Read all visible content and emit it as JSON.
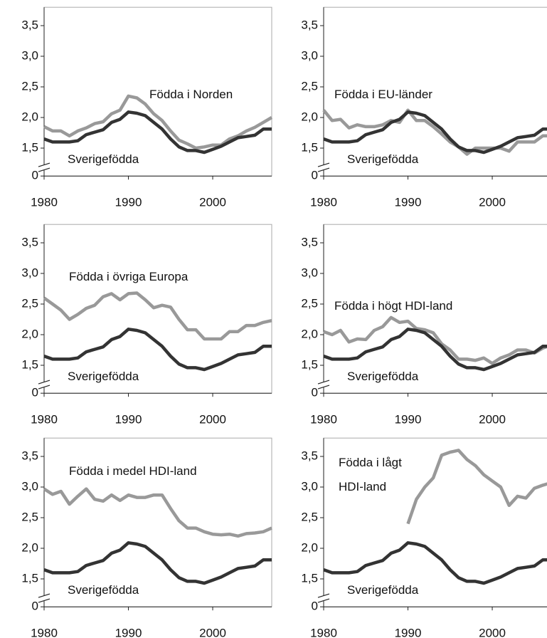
{
  "chart_data": [
    {
      "type": "line",
      "xlim": [
        1980,
        2007
      ],
      "xticks": [
        1980,
        1990,
        2000
      ],
      "ylim": [
        0,
        3.8
      ],
      "axis_break": 1.3,
      "yticks": [
        0,
        {
          "value": 1.5,
          "label": "1,5"
        },
        {
          "value": 2.0,
          "label": "2,0"
        },
        {
          "value": 2.5,
          "label": "2,5"
        },
        {
          "value": 3.0,
          "label": "3,0"
        },
        {
          "value": 3.5,
          "label": "3,5"
        }
      ],
      "x": [
        1980,
        1981,
        1982,
        1983,
        1984,
        1985,
        1986,
        1987,
        1988,
        1989,
        1990,
        1991,
        1992,
        1993,
        1994,
        1995,
        1996,
        1997,
        1998,
        1999,
        2000,
        2001,
        2002,
        2003,
        2004,
        2005,
        2006,
        2007
      ],
      "series": [
        {
          "name": "Födda i Norden",
          "color": "#999999",
          "values": [
            1.85,
            1.78,
            1.78,
            1.7,
            1.78,
            1.83,
            1.9,
            1.93,
            2.06,
            2.12,
            2.35,
            2.32,
            2.22,
            2.06,
            1.95,
            1.78,
            1.63,
            1.57,
            1.5,
            1.52,
            1.55,
            1.55,
            1.65,
            1.7,
            1.78,
            1.84,
            1.92,
            2.0
          ]
        },
        {
          "name": "Sverigefödda",
          "color": "#333333",
          "values": [
            1.65,
            1.6,
            1.6,
            1.6,
            1.62,
            1.72,
            1.76,
            1.8,
            1.92,
            1.97,
            2.09,
            2.07,
            2.03,
            1.92,
            1.81,
            1.65,
            1.52,
            1.46,
            1.46,
            1.43,
            1.48,
            1.53,
            1.6,
            1.67,
            1.69,
            1.71,
            1.81,
            1.81
          ]
        }
      ]
    },
    {
      "type": "line",
      "xlim": [
        1980,
        2007
      ],
      "xticks": [
        1980,
        1990,
        2000
      ],
      "ylim": [
        0,
        3.8
      ],
      "axis_break": 1.3,
      "yticks": [
        0,
        {
          "value": 1.5,
          "label": "1,5"
        },
        {
          "value": 2.0,
          "label": "2,0"
        },
        {
          "value": 2.5,
          "label": "2,5"
        },
        {
          "value": 3.0,
          "label": "3,0"
        },
        {
          "value": 3.5,
          "label": "3,5"
        }
      ],
      "x": [
        1980,
        1981,
        1982,
        1983,
        1984,
        1985,
        1986,
        1987,
        1988,
        1989,
        1990,
        1991,
        1992,
        1993,
        1994,
        1995,
        1996,
        1997,
        1998,
        1999,
        2000,
        2001,
        2002,
        2003,
        2004,
        2005,
        2006,
        2007
      ],
      "series": [
        {
          "name": "Födda i EU-länder",
          "color": "#999999",
          "values": [
            2.12,
            1.95,
            1.97,
            1.83,
            1.88,
            1.85,
            1.85,
            1.88,
            1.95,
            1.92,
            2.12,
            1.95,
            1.95,
            1.85,
            1.73,
            1.6,
            1.52,
            1.4,
            1.5,
            1.5,
            1.5,
            1.5,
            1.45,
            1.6,
            1.6,
            1.6,
            1.7,
            1.7
          ]
        },
        {
          "name": "Sverigefödda",
          "color": "#333333",
          "values": [
            1.65,
            1.6,
            1.6,
            1.6,
            1.62,
            1.72,
            1.76,
            1.8,
            1.92,
            1.97,
            2.09,
            2.07,
            2.03,
            1.92,
            1.81,
            1.65,
            1.52,
            1.46,
            1.46,
            1.43,
            1.48,
            1.53,
            1.6,
            1.67,
            1.69,
            1.71,
            1.81,
            1.81
          ]
        }
      ]
    },
    {
      "type": "line",
      "xlim": [
        1980,
        2007
      ],
      "xticks": [
        1980,
        1990,
        2000
      ],
      "ylim": [
        0,
        3.8
      ],
      "axis_break": 1.3,
      "yticks": [
        0,
        {
          "value": 1.5,
          "label": "1,5"
        },
        {
          "value": 2.0,
          "label": "2,0"
        },
        {
          "value": 2.5,
          "label": "2,5"
        },
        {
          "value": 3.0,
          "label": "3,0"
        },
        {
          "value": 3.5,
          "label": "3,5"
        }
      ],
      "x": [
        1980,
        1981,
        1982,
        1983,
        1984,
        1985,
        1986,
        1987,
        1988,
        1989,
        1990,
        1991,
        1992,
        1993,
        1994,
        1995,
        1996,
        1997,
        1998,
        1999,
        2000,
        2001,
        2002,
        2003,
        2004,
        2005,
        2006,
        2007
      ],
      "series": [
        {
          "name": "Födda i övriga Europa",
          "color": "#999999",
          "values": [
            2.6,
            2.5,
            2.4,
            2.25,
            2.33,
            2.43,
            2.48,
            2.62,
            2.67,
            2.57,
            2.67,
            2.68,
            2.57,
            2.44,
            2.48,
            2.45,
            2.25,
            2.08,
            2.08,
            1.93,
            1.93,
            1.93,
            2.05,
            2.05,
            2.15,
            2.15,
            2.2,
            2.23
          ]
        },
        {
          "name": "Sverigefödda",
          "color": "#333333",
          "values": [
            1.65,
            1.6,
            1.6,
            1.6,
            1.62,
            1.72,
            1.76,
            1.8,
            1.92,
            1.97,
            2.09,
            2.07,
            2.03,
            1.92,
            1.81,
            1.65,
            1.52,
            1.46,
            1.46,
            1.43,
            1.48,
            1.53,
            1.6,
            1.67,
            1.69,
            1.71,
            1.81,
            1.81
          ]
        }
      ]
    },
    {
      "type": "line",
      "xlim": [
        1980,
        2007
      ],
      "xticks": [
        1980,
        1990,
        2000
      ],
      "ylim": [
        0,
        3.8
      ],
      "axis_break": 1.3,
      "yticks": [
        0,
        {
          "value": 1.5,
          "label": "1,5"
        },
        {
          "value": 2.0,
          "label": "2,0"
        },
        {
          "value": 2.5,
          "label": "2,5"
        },
        {
          "value": 3.0,
          "label": "3,0"
        },
        {
          "value": 3.5,
          "label": "3,5"
        }
      ],
      "x": [
        1980,
        1981,
        1982,
        1983,
        1984,
        1985,
        1986,
        1987,
        1988,
        1989,
        1990,
        1991,
        1992,
        1993,
        1994,
        1995,
        1996,
        1997,
        1998,
        1999,
        2000,
        2001,
        2002,
        2003,
        2004,
        2005,
        2006,
        2007
      ],
      "series": [
        {
          "name": "Födda i högt HDI-land",
          "color": "#999999",
          "values": [
            2.05,
            2.0,
            2.07,
            1.88,
            1.93,
            1.92,
            2.07,
            2.13,
            2.28,
            2.2,
            2.22,
            2.1,
            2.08,
            2.03,
            1.85,
            1.75,
            1.6,
            1.6,
            1.58,
            1.62,
            1.53,
            1.62,
            1.67,
            1.75,
            1.75,
            1.7,
            1.78,
            1.83
          ]
        },
        {
          "name": "Sverigefödda",
          "color": "#333333",
          "values": [
            1.65,
            1.6,
            1.6,
            1.6,
            1.62,
            1.72,
            1.76,
            1.8,
            1.92,
            1.97,
            2.09,
            2.07,
            2.03,
            1.92,
            1.81,
            1.65,
            1.52,
            1.46,
            1.46,
            1.43,
            1.48,
            1.53,
            1.6,
            1.67,
            1.69,
            1.71,
            1.81,
            1.81
          ]
        }
      ]
    },
    {
      "type": "line",
      "xlim": [
        1980,
        2007
      ],
      "xticks": [
        1980,
        1990,
        2000
      ],
      "ylim": [
        0,
        3.8
      ],
      "axis_break": 1.3,
      "yticks": [
        0,
        {
          "value": 1.5,
          "label": "1,5"
        },
        {
          "value": 2.0,
          "label": "2,0"
        },
        {
          "value": 2.5,
          "label": "2,5"
        },
        {
          "value": 3.0,
          "label": "3,0"
        },
        {
          "value": 3.5,
          "label": "3,5"
        }
      ],
      "x": [
        1980,
        1981,
        1982,
        1983,
        1984,
        1985,
        1986,
        1987,
        1988,
        1989,
        1990,
        1991,
        1992,
        1993,
        1994,
        1995,
        1996,
        1997,
        1998,
        1999,
        2000,
        2001,
        2002,
        2003,
        2004,
        2005,
        2006,
        2007
      ],
      "series": [
        {
          "name": "Födda i medel HDI-land",
          "color": "#999999",
          "values": [
            2.97,
            2.88,
            2.93,
            2.72,
            2.85,
            2.97,
            2.8,
            2.77,
            2.87,
            2.78,
            2.87,
            2.83,
            2.83,
            2.87,
            2.87,
            2.65,
            2.45,
            2.33,
            2.33,
            2.27,
            2.23,
            2.22,
            2.23,
            2.2,
            2.24,
            2.25,
            2.27,
            2.33
          ]
        },
        {
          "name": "Sverigefödda",
          "color": "#333333",
          "values": [
            1.65,
            1.6,
            1.6,
            1.6,
            1.62,
            1.72,
            1.76,
            1.8,
            1.92,
            1.97,
            2.09,
            2.07,
            2.03,
            1.92,
            1.81,
            1.65,
            1.52,
            1.46,
            1.46,
            1.43,
            1.48,
            1.53,
            1.6,
            1.67,
            1.69,
            1.71,
            1.81,
            1.81
          ]
        }
      ]
    },
    {
      "type": "line",
      "xlim": [
        1980,
        2007
      ],
      "xticks": [
        1980,
        1990,
        2000
      ],
      "ylim": [
        0,
        3.8
      ],
      "axis_break": 1.3,
      "yticks": [
        0,
        {
          "value": 1.5,
          "label": "1,5"
        },
        {
          "value": 2.0,
          "label": "2,0"
        },
        {
          "value": 2.5,
          "label": "2,5"
        },
        {
          "value": 3.0,
          "label": "3,0"
        },
        {
          "value": 3.5,
          "label": "3,5"
        }
      ],
      "x": [
        1980,
        1981,
        1982,
        1983,
        1984,
        1985,
        1986,
        1987,
        1988,
        1989,
        1990,
        1991,
        1992,
        1993,
        1994,
        1995,
        1996,
        1997,
        1998,
        1999,
        2000,
        2001,
        2002,
        2003,
        2004,
        2005,
        2006,
        2007
      ],
      "series": [
        {
          "name": "Födda i lågt HDI-land",
          "color": "#999999",
          "values": [
            null,
            null,
            null,
            null,
            null,
            null,
            null,
            null,
            null,
            null,
            2.4,
            2.8,
            3.0,
            3.15,
            3.52,
            3.57,
            3.6,
            3.45,
            3.35,
            3.2,
            3.1,
            3.0,
            2.7,
            2.85,
            2.82,
            2.98,
            3.03,
            3.07
          ]
        },
        {
          "name": "Sverigefödda",
          "color": "#333333",
          "values": [
            1.65,
            1.6,
            1.6,
            1.6,
            1.62,
            1.72,
            1.76,
            1.8,
            1.92,
            1.97,
            2.09,
            2.07,
            2.03,
            1.92,
            1.81,
            1.65,
            1.52,
            1.46,
            1.46,
            1.43,
            1.48,
            1.53,
            1.6,
            1.67,
            1.69,
            1.71,
            1.81,
            1.81
          ]
        }
      ]
    }
  ]
}
